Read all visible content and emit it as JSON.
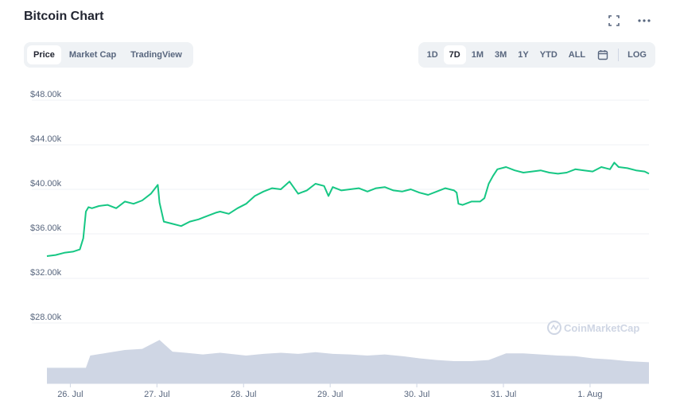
{
  "header": {
    "title": "Bitcoin Chart",
    "fullscreen_icon": "fullscreen-icon",
    "more_icon": "more-horizontal-icon"
  },
  "tabs": [
    {
      "label": "Price",
      "active": true
    },
    {
      "label": "Market Cap",
      "active": false
    },
    {
      "label": "TradingView",
      "active": false
    }
  ],
  "ranges": [
    {
      "label": "1D",
      "active": false
    },
    {
      "label": "7D",
      "active": true
    },
    {
      "label": "1M",
      "active": false
    },
    {
      "label": "3M",
      "active": false
    },
    {
      "label": "1Y",
      "active": false
    },
    {
      "label": "YTD",
      "active": false
    },
    {
      "label": "ALL",
      "active": false
    }
  ],
  "calendar_icon": "calendar-icon",
  "log_label": "LOG",
  "watermark": "CoinMarketCap",
  "colors": {
    "line": "#16c784",
    "volume": "#cfd6e4",
    "grid": "#eff2f5"
  },
  "chart_data": {
    "type": "line",
    "ylim": [
      28000,
      48000
    ],
    "y_ticks": [
      {
        "value": 28000,
        "label": "$28.00k"
      },
      {
        "value": 32000,
        "label": "$32.00k"
      },
      {
        "value": 36000,
        "label": "$36.00k"
      },
      {
        "value": 40000,
        "label": "$40.00k"
      },
      {
        "value": 44000,
        "label": "$44.00k"
      },
      {
        "value": 48000,
        "label": "$48.00k"
      }
    ],
    "x_ticks": [
      {
        "day": 0.27,
        "label": "26. Jul"
      },
      {
        "day": 1.27,
        "label": "27. Jul"
      },
      {
        "day": 2.27,
        "label": "28. Jul"
      },
      {
        "day": 3.27,
        "label": "29. Jul"
      },
      {
        "day": 4.27,
        "label": "30. Jul"
      },
      {
        "day": 5.27,
        "label": "31. Jul"
      },
      {
        "day": 6.27,
        "label": "1. Aug"
      }
    ],
    "xlim": [
      0,
      6.95
    ],
    "series": [
      {
        "values_day": [
          0.0,
          0.1,
          0.2,
          0.3,
          0.38,
          0.42,
          0.45,
          0.48,
          0.52,
          0.6,
          0.7,
          0.8,
          0.9,
          1.0,
          1.1,
          1.2,
          1.28,
          1.3,
          1.35,
          1.45,
          1.55,
          1.65,
          1.75,
          1.85,
          1.95,
          2.0,
          2.1,
          2.2,
          2.3,
          2.4,
          2.5,
          2.6,
          2.7,
          2.8,
          2.9,
          3.0,
          3.1,
          3.2,
          3.25,
          3.3,
          3.4,
          3.5,
          3.6,
          3.7,
          3.8,
          3.9,
          4.0,
          4.1,
          4.2,
          4.3,
          4.4,
          4.5,
          4.6,
          4.7,
          4.73,
          4.75,
          4.8,
          4.9,
          5.0,
          5.05,
          5.1,
          5.15,
          5.2,
          5.3,
          5.4,
          5.5,
          5.6,
          5.7,
          5.8,
          5.9,
          6.0,
          6.1,
          6.2,
          6.3,
          6.4,
          6.5,
          6.55,
          6.6,
          6.7,
          6.8,
          6.9,
          6.95
        ],
        "values": [
          34000,
          34100,
          34300,
          34400,
          34600,
          35600,
          38000,
          38400,
          38300,
          38500,
          38600,
          38300,
          38900,
          38700,
          39000,
          39600,
          40400,
          38800,
          37100,
          36900,
          36700,
          37100,
          37300,
          37600,
          37900,
          38000,
          37800,
          38300,
          38700,
          39400,
          39800,
          40100,
          40000,
          40700,
          39600,
          39900,
          40500,
          40300,
          39400,
          40200,
          39900,
          40000,
          40100,
          39800,
          40100,
          40200,
          39900,
          39800,
          40000,
          39700,
          39500,
          39800,
          40100,
          39900,
          39700,
          38700,
          38600,
          38900,
          38900,
          39200,
          40500,
          41200,
          41800,
          42000,
          41700,
          41500,
          41600,
          41700,
          41500,
          41400,
          41500,
          41800,
          41700,
          41600,
          42000,
          41800,
          42400,
          42000,
          41900,
          41700,
          41600,
          41400
        ]
      }
    ],
    "volume": {
      "days": [
        0.0,
        0.45,
        0.5,
        0.7,
        0.9,
        1.1,
        1.3,
        1.45,
        1.6,
        1.8,
        2.0,
        2.3,
        2.5,
        2.7,
        2.9,
        3.1,
        3.3,
        3.5,
        3.7,
        3.9,
        4.1,
        4.3,
        4.5,
        4.7,
        4.9,
        5.1,
        5.3,
        5.5,
        5.7,
        5.9,
        6.1,
        6.3,
        6.5,
        6.7,
        6.95
      ],
      "values": [
        0.28,
        0.28,
        0.5,
        0.55,
        0.6,
        0.62,
        0.78,
        0.57,
        0.55,
        0.52,
        0.55,
        0.5,
        0.53,
        0.55,
        0.53,
        0.56,
        0.53,
        0.52,
        0.5,
        0.52,
        0.49,
        0.45,
        0.42,
        0.4,
        0.4,
        0.42,
        0.54,
        0.54,
        0.52,
        0.5,
        0.49,
        0.45,
        0.43,
        0.4,
        0.38
      ]
    }
  }
}
